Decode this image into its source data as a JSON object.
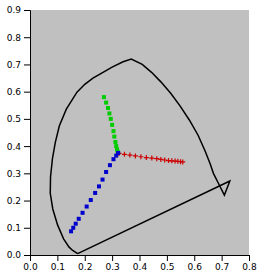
{
  "chart_data": {
    "type": "scatter",
    "xlim": [
      0,
      0.8
    ],
    "ylim": [
      0,
      0.9
    ],
    "xticks": [
      {
        "value": 0,
        "label": "0.0"
      },
      0.1,
      0.2,
      0.3,
      0.4,
      0.5,
      0.6,
      0.7,
      0.8
    ],
    "yticks": [
      {
        "value": 0,
        "label": "0.0"
      },
      0.1,
      0.2,
      0.3,
      0.4,
      0.5,
      0.6,
      0.7,
      0.8,
      0.9
    ],
    "series": [
      {
        "type": "line",
        "color": "#000000",
        "line_style": "solid",
        "x": [
          0.1741,
          0.1547,
          0.1421,
          0.1227,
          0.101,
          0.0832,
          0.074,
          0.075,
          0.082,
          0.0923,
          0.107,
          0.1327,
          0.1716,
          0.2,
          0.23,
          0.265,
          0.3,
          0.34,
          0.37,
          0.41,
          0.444,
          0.478,
          0.514,
          0.548,
          0.582,
          0.614,
          0.64,
          0.658,
          0.67,
          0.69,
          0.71,
          0.728,
          0.73,
          0.1741
        ],
        "values": [
          0.005,
          0.0177,
          0.0297,
          0.0594,
          0.1096,
          0.1691,
          0.2268,
          0.2873,
          0.3538,
          0.4127,
          0.4738,
          0.536,
          0.598,
          0.627,
          0.65,
          0.67,
          0.69,
          0.71,
          0.72,
          0.7,
          0.671,
          0.636,
          0.594,
          0.548,
          0.496,
          0.44,
          0.381,
          0.335,
          0.3,
          0.26,
          0.22,
          0.266,
          0.272,
          0.005
        ]
      },
      {
        "type": "scatter",
        "color": "#00cc00",
        "marker": "square",
        "x": [
          0.27,
          0.278,
          0.285,
          0.29,
          0.295,
          0.3,
          0.305,
          0.308,
          0.312,
          0.315,
          0.318,
          0.32,
          0.322
        ],
        "values": [
          0.58,
          0.56,
          0.54,
          0.52,
          0.5,
          0.478,
          0.455,
          0.435,
          0.415,
          0.4,
          0.388,
          0.38,
          0.375
        ]
      },
      {
        "type": "scatter",
        "color": "#cc0000",
        "marker": "plus",
        "x": [
          0.325,
          0.345,
          0.365,
          0.385,
          0.405,
          0.425,
          0.445,
          0.463,
          0.478,
          0.492,
          0.506,
          0.518,
          0.53,
          0.54,
          0.55,
          0.558
        ],
        "values": [
          0.373,
          0.37,
          0.367,
          0.364,
          0.361,
          0.358,
          0.356,
          0.354,
          0.351,
          0.349,
          0.347,
          0.346,
          0.345,
          0.344,
          0.343,
          0.342
        ]
      },
      {
        "type": "scatter",
        "color": "#0000cc",
        "marker": "square",
        "x": [
          0.15,
          0.158,
          0.167,
          0.178,
          0.192,
          0.207,
          0.222,
          0.238,
          0.252,
          0.265,
          0.278,
          0.292,
          0.305,
          0.315,
          0.322
        ],
        "values": [
          0.087,
          0.1,
          0.115,
          0.133,
          0.155,
          0.178,
          0.202,
          0.228,
          0.252,
          0.277,
          0.305,
          0.33,
          0.352,
          0.365,
          0.375
        ]
      }
    ]
  }
}
